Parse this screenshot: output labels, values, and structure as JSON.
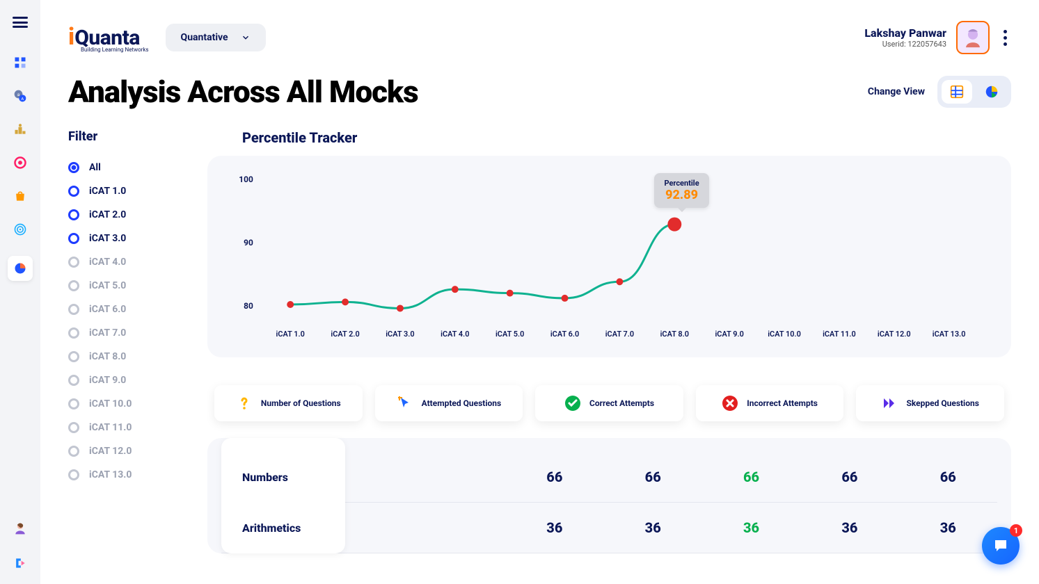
{
  "brand": {
    "logo_i": "i",
    "logo_text": "Quanta",
    "tagline": "Building Learning Networks"
  },
  "section_dropdown": {
    "label": "Quantative"
  },
  "user": {
    "name": "Lakshay Panwar",
    "id_label": "Userid: 122057643"
  },
  "page_title": "Analysis Across All Mocks",
  "view_switch": {
    "label": "Change View"
  },
  "filter": {
    "title": "Filter",
    "items": [
      {
        "label": "All",
        "state": "selected"
      },
      {
        "label": "iCAT 1.0",
        "state": "enabled"
      },
      {
        "label": "iCAT 2.0",
        "state": "enabled"
      },
      {
        "label": "iCAT 3.0",
        "state": "enabled"
      },
      {
        "label": "iCAT 4.0",
        "state": "disabled"
      },
      {
        "label": "iCAT 5.0",
        "state": "disabled"
      },
      {
        "label": "iCAT 6.0",
        "state": "disabled"
      },
      {
        "label": "iCAT 7.0",
        "state": "disabled"
      },
      {
        "label": "iCAT 8.0",
        "state": "disabled"
      },
      {
        "label": "iCAT 9.0",
        "state": "disabled"
      },
      {
        "label": "iCAT 10.0",
        "state": "disabled"
      },
      {
        "label": "iCAT 11.0",
        "state": "disabled"
      },
      {
        "label": "iCAT 12.0",
        "state": "disabled"
      },
      {
        "label": "iCAT 13.0",
        "state": "disabled"
      }
    ]
  },
  "chart": {
    "title": "Percentile Tracker",
    "type": "line",
    "background_color": "#f6f7fb",
    "line_color": "#0fb290",
    "line_width": 3,
    "marker_color": "#e22c2c",
    "marker_radius": 5,
    "highlight_marker_radius": 10,
    "ylim": [
      78,
      100
    ],
    "yticks": [
      80,
      90,
      100
    ],
    "xlabels": [
      "iCAT 1.0",
      "iCAT 2.0",
      "iCAT 3.0",
      "iCAT 4.0",
      "iCAT 5.0",
      "iCAT 6.0",
      "iCAT 7.0",
      "iCAT 8.0",
      "iCAT 9.0",
      "iCAT 10.0",
      "iCAT 11.0",
      "iCAT 12.0",
      "iCAT 13.0"
    ],
    "values": [
      80.2,
      80.6,
      79.6,
      82.6,
      82.0,
      81.2,
      83.8,
      92.89
    ],
    "highlight_index": 7,
    "tooltip": {
      "label": "Percentile",
      "value": "92.89",
      "value_color": "#ff8a00"
    }
  },
  "metrics": [
    {
      "label": "Number of Questions",
      "icon": "question",
      "color": "#ffb600"
    },
    {
      "label": "Attempted Questions",
      "icon": "cursor",
      "color": "#1e66ff"
    },
    {
      "label": "Correct Attempts",
      "icon": "check",
      "color": "#08b04e"
    },
    {
      "label": "Incorrect Attempts",
      "icon": "cross",
      "color": "#e21f1f"
    },
    {
      "label": "Skepped Questions",
      "icon": "skip",
      "color": "#5a2de8"
    }
  ],
  "table": {
    "rows": [
      {
        "label": "Numbers",
        "cells": [
          "66",
          "66",
          "66",
          "66",
          "66"
        ],
        "highlight_col": 2
      },
      {
        "label": "Arithmetics",
        "cells": [
          "36",
          "36",
          "36",
          "36",
          "36"
        ],
        "highlight_col": 2
      }
    ],
    "highlight_color": "#08b04e"
  },
  "fab": {
    "badge": "1"
  }
}
